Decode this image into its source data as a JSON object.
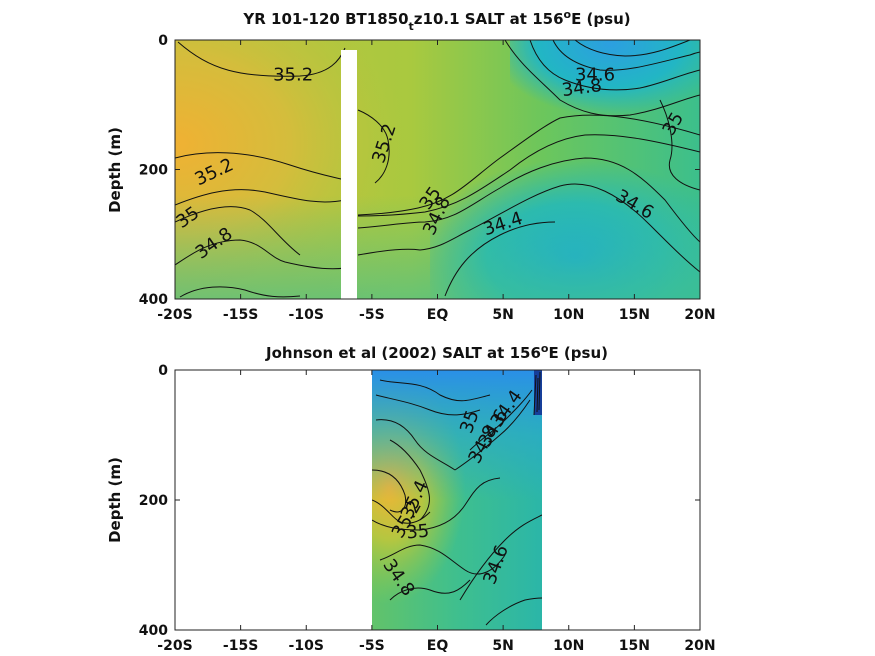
{
  "chart_data": [
    {
      "type": "heatmap",
      "title_parts": {
        "a": "YR 101-120 BT1850",
        "sub": "t",
        "b": "z10.1 SALT at 156",
        "sup": "o",
        "c": "E (psu)"
      },
      "xlabel": "",
      "ylabel": "Depth (m)",
      "xlim": [
        -20,
        20
      ],
      "ylim": [
        400,
        0
      ],
      "x_ticks": [
        -20,
        -15,
        -10,
        -5,
        0,
        5,
        10,
        15,
        20
      ],
      "x_tick_labels": [
        "-20S",
        "-15S",
        "-10S",
        "-5S",
        "EQ",
        "5N",
        "10N",
        "15N",
        "20N"
      ],
      "y_ticks": [
        0,
        200,
        400
      ],
      "y_tick_labels": [
        "0",
        "200",
        "400"
      ],
      "masked_x_range": [
        -7.5,
        -6.5
      ],
      "contour_labels": [
        {
          "text": "35.2",
          "lat": -11,
          "depth": 55
        },
        {
          "text": "34.6",
          "lat": 12,
          "depth": 55
        },
        {
          "text": "34.8",
          "lat": 11,
          "depth": 75
        },
        {
          "text": "35",
          "lat": 18,
          "depth": 130
        },
        {
          "text": "35.2",
          "lat": -4,
          "depth": 160
        },
        {
          "text": "35.2",
          "lat": -17,
          "depth": 205
        },
        {
          "text": "35",
          "lat": -0.5,
          "depth": 245
        },
        {
          "text": "34.8",
          "lat": 0,
          "depth": 272
        },
        {
          "text": "34.6",
          "lat": 15,
          "depth": 255
        },
        {
          "text": "35",
          "lat": -19,
          "depth": 275
        },
        {
          "text": "34.4",
          "lat": 5,
          "depth": 285
        },
        {
          "text": "34.8",
          "lat": -17,
          "depth": 315
        }
      ]
    },
    {
      "type": "heatmap",
      "title_parts": {
        "a": "Johnson et al (2002) SALT at 156",
        "sup": "o",
        "c": "E (psu)"
      },
      "xlabel": "",
      "ylabel": "Depth (m)",
      "xlim": [
        -20,
        20
      ],
      "ylim": [
        400,
        0
      ],
      "x_ticks": [
        -20,
        -15,
        -10,
        -5,
        0,
        5,
        10,
        15,
        20
      ],
      "x_tick_labels": [
        "-20S",
        "-15S",
        "-10S",
        "-5S",
        "EQ",
        "5N",
        "10N",
        "15N",
        "20N"
      ],
      "y_ticks": [
        0,
        200,
        400
      ],
      "y_tick_labels": [
        "0",
        "200",
        "400"
      ],
      "data_x_range": [
        -5,
        8
      ],
      "contour_labels": [
        {
          "text": "34.4",
          "lat": 5.3,
          "depth": 60
        },
        {
          "text": "34.6",
          "lat": 4.3,
          "depth": 90
        },
        {
          "text": "34.8",
          "lat": 3.5,
          "depth": 115
        },
        {
          "text": "35",
          "lat": 2.5,
          "depth": 80
        },
        {
          "text": "35.4",
          "lat": -1.7,
          "depth": 200
        },
        {
          "text": "35.2",
          "lat": -2.3,
          "depth": 230
        },
        {
          "text": "35",
          "lat": -1.5,
          "depth": 250
        },
        {
          "text": "34.6",
          "lat": 4.5,
          "depth": 300
        },
        {
          "text": "34.8",
          "lat": -3,
          "depth": 320
        }
      ]
    }
  ]
}
